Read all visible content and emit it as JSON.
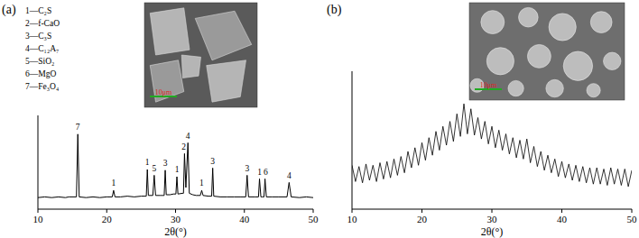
{
  "chart_data": [
    {
      "type": "line",
      "panel_label": "(a)",
      "x_label": "2θ(°)",
      "phase_key": [
        "1—C₂S",
        "2—f-CaO",
        "3—C₃S",
        "4—C₁₂A₇",
        "5—SiO₂",
        "6—MgO",
        "7—Fe₃O₄"
      ],
      "scale_bar": "10μm",
      "x": [
        10,
        11,
        12,
        13,
        14,
        14.5,
        15.6,
        15.8,
        16.0,
        17,
        18,
        19,
        20,
        20.8,
        21.0,
        21.2,
        22,
        23,
        24,
        25,
        25.6,
        25.75,
        25.9,
        26.05,
        26.7,
        26.9,
        27.1,
        27.8,
        28.0,
        28.35,
        28.5,
        28.65,
        29.2,
        29.7,
        30.05,
        30.2,
        30.35,
        31.0,
        31.15,
        31.3,
        31.5,
        31.8,
        32.0,
        32.5,
        33.0,
        33.6,
        33.8,
        34.0,
        34.8,
        35.25,
        35.4,
        35.55,
        36.5,
        37.5,
        38.5,
        39.5,
        40.2,
        40.4,
        40.6,
        41.5,
        42.05,
        42.2,
        42.4,
        42.6,
        42.85,
        43.0,
        43.2,
        44,
        45,
        46.2,
        46.5,
        46.8,
        48,
        49,
        50
      ],
      "values": [
        16,
        17,
        16,
        17,
        16,
        17,
        17,
        104,
        17,
        16,
        17,
        16,
        17,
        17,
        26,
        17,
        17,
        18,
        17,
        18,
        18,
        18,
        55,
        19,
        19,
        47,
        19,
        19,
        19,
        19,
        54,
        20,
        20,
        21,
        21,
        45,
        21,
        22,
        22,
        77,
        30,
        92,
        22,
        20,
        19,
        19,
        26,
        19,
        18,
        18,
        57,
        18,
        17,
        17,
        17,
        17,
        17,
        47,
        17,
        17,
        17,
        42,
        17,
        17,
        17,
        42,
        17,
        17,
        17,
        17,
        37,
        17,
        16,
        17,
        16
      ],
      "color": "#000000",
      "xlim": [
        10,
        50
      ],
      "xticks": [
        10,
        20,
        30,
        40,
        50
      ],
      "ylim": [
        0,
        130
      ],
      "tick_labels": "x",
      "annotations": [
        {
          "x": 15.8,
          "y": 110,
          "text": "7"
        },
        {
          "x": 21.0,
          "y": 32,
          "text": "1"
        },
        {
          "x": 25.9,
          "y": 61,
          "text": "1"
        },
        {
          "x": 26.9,
          "y": 53,
          "text": "5"
        },
        {
          "x": 28.5,
          "y": 60,
          "text": "3"
        },
        {
          "x": 30.2,
          "y": 51,
          "text": "1"
        },
        {
          "x": 31.2,
          "y": 83,
          "text": "2"
        },
        {
          "x": 31.8,
          "y": 98,
          "text": "4"
        },
        {
          "x": 33.8,
          "y": 32,
          "text": "1"
        },
        {
          "x": 35.4,
          "y": 63,
          "text": "3"
        },
        {
          "x": 40.4,
          "y": 53,
          "text": "3"
        },
        {
          "x": 42.2,
          "y": 48,
          "text": "1"
        },
        {
          "x": 43.1,
          "y": 48,
          "text": "6"
        },
        {
          "x": 46.5,
          "y": 43,
          "text": "4"
        }
      ]
    },
    {
      "type": "line",
      "panel_label": "(b)",
      "x_label": "2θ(°)",
      "scale_bar": "10μm",
      "x": [
        10,
        10.5,
        11,
        11.5,
        12,
        12.5,
        13,
        13.5,
        14,
        14.5,
        15,
        15.5,
        16,
        16.5,
        17,
        17.5,
        18,
        18.5,
        19,
        19.5,
        20,
        20.5,
        21,
        21.5,
        22,
        22.5,
        23,
        23.5,
        24,
        24.5,
        25,
        25.5,
        26,
        26.5,
        27,
        27.5,
        28,
        28.5,
        29,
        29.5,
        30,
        30.5,
        31,
        31.5,
        32,
        32.5,
        33,
        33.5,
        34,
        34.5,
        35,
        35.5,
        36,
        36.5,
        37,
        37.5,
        38,
        38.5,
        39,
        39.5,
        40,
        40.5,
        41,
        41.5,
        42,
        42.5,
        43,
        43.5,
        44,
        44.5,
        45,
        45.5,
        46,
        46.5,
        47,
        47.5,
        48,
        48.5,
        49,
        49.5,
        50
      ],
      "values": [
        55,
        42,
        54,
        41,
        56,
        43,
        55,
        42,
        57,
        44,
        58,
        45,
        60,
        47,
        62,
        49,
        66,
        53,
        69,
        55,
        73,
        59,
        77,
        63,
        82,
        67,
        86,
        71,
        90,
        74,
        96,
        78,
        104,
        80,
        100,
        79,
        93,
        76,
        90,
        72,
        86,
        69,
        83,
        67,
        80,
        64,
        77,
        61,
        75,
        60,
        76,
        57,
        70,
        54,
        66,
        51,
        63,
        49,
        60,
        46,
        58,
        45,
        56,
        43,
        55,
        42,
        54,
        41,
        53,
        40,
        53,
        40,
        52,
        39,
        53,
        40,
        52,
        39,
        52,
        38,
        51
      ],
      "color": "#000000",
      "xlim": [
        10,
        50
      ],
      "xticks": [
        10,
        20,
        30,
        40,
        50
      ],
      "ylim": [
        20,
        130
      ],
      "tick_labels": "x"
    }
  ]
}
